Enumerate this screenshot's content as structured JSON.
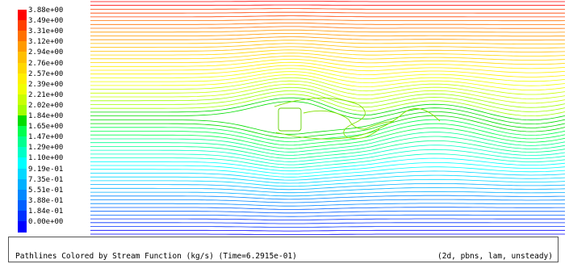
{
  "caption": {
    "left": "Pathlines Colored by Stream Function (kg/s)  (Time=6.2915e-01)",
    "right": "(2d, pbns, lam, unsteady)"
  },
  "legend": {
    "labels": [
      "3.88e+00",
      "3.49e+00",
      "3.31e+00",
      "3.12e+00",
      "2.94e+00",
      "2.76e+00",
      "2.57e+00",
      "2.39e+00",
      "2.21e+00",
      "2.02e+00",
      "1.84e+00",
      "1.65e+00",
      "1.47e+00",
      "1.29e+00",
      "1.10e+00",
      "9.19e-01",
      "7.35e-01",
      "5.51e-01",
      "3.88e-01",
      "1.84e-01",
      "0.00e+00"
    ],
    "colors": [
      "#ff0000",
      "#ff4000",
      "#ff7000",
      "#ff9a00",
      "#ffbf00",
      "#ffd800",
      "#fff000",
      "#f0ff00",
      "#c8ff00",
      "#a0ff00",
      "#00dd00",
      "#00ff50",
      "#00ff90",
      "#00ffc8",
      "#00ffff",
      "#00d8ff",
      "#00b0ff",
      "#0088ff",
      "#0060ff",
      "#0030ff",
      "#0000ff"
    ]
  }
}
